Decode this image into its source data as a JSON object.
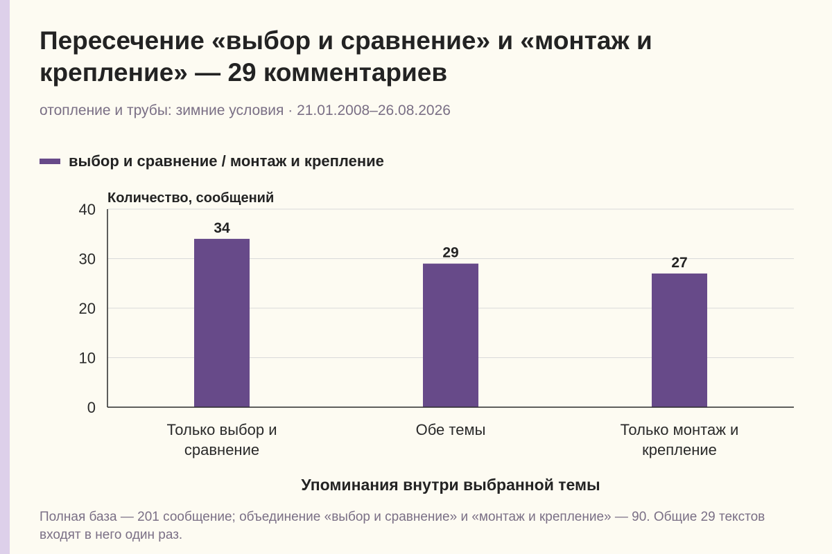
{
  "header": {
    "title": "Пересечение «выбор и сравнение» и «монтаж и крепление» — 29 комментариев",
    "subtitle": "отопление и трубы: зимние условия · 21.01.2008–26.08.2026"
  },
  "legend": {
    "label": "выбор и сравнение / монтаж и крепление"
  },
  "footer": {
    "note": "Полная база — 201 сообщение; объединение «выбор и сравнение» и «монтаж и крепление» — 90. Общие 29 текстов входят в него один раз."
  },
  "colors": {
    "bar": "#674a89",
    "grid": "#d9d9d9",
    "axis": "#2a2a2a",
    "background": "#fdfbf2",
    "accent_stripe": "#ddd0ea"
  },
  "chart_data": {
    "type": "bar",
    "categories": [
      [
        "Только выбор и",
        "сравнение"
      ],
      [
        "Обе темы"
      ],
      [
        "Только монтаж и",
        "крепление"
      ]
    ],
    "series": [
      {
        "name": "выбор и сравнение / монтаж и крепление",
        "values": [
          34,
          29,
          27
        ]
      }
    ],
    "data_labels": [
      "34",
      "29",
      "27"
    ],
    "ylabel": "Количество, сообщений",
    "xlabel": "Упоминания внутри выбранной темы",
    "ylim": [
      0,
      40
    ],
    "yticks": [
      0,
      10,
      20,
      30,
      40
    ],
    "grid": true,
    "legend_position": "top-left"
  }
}
